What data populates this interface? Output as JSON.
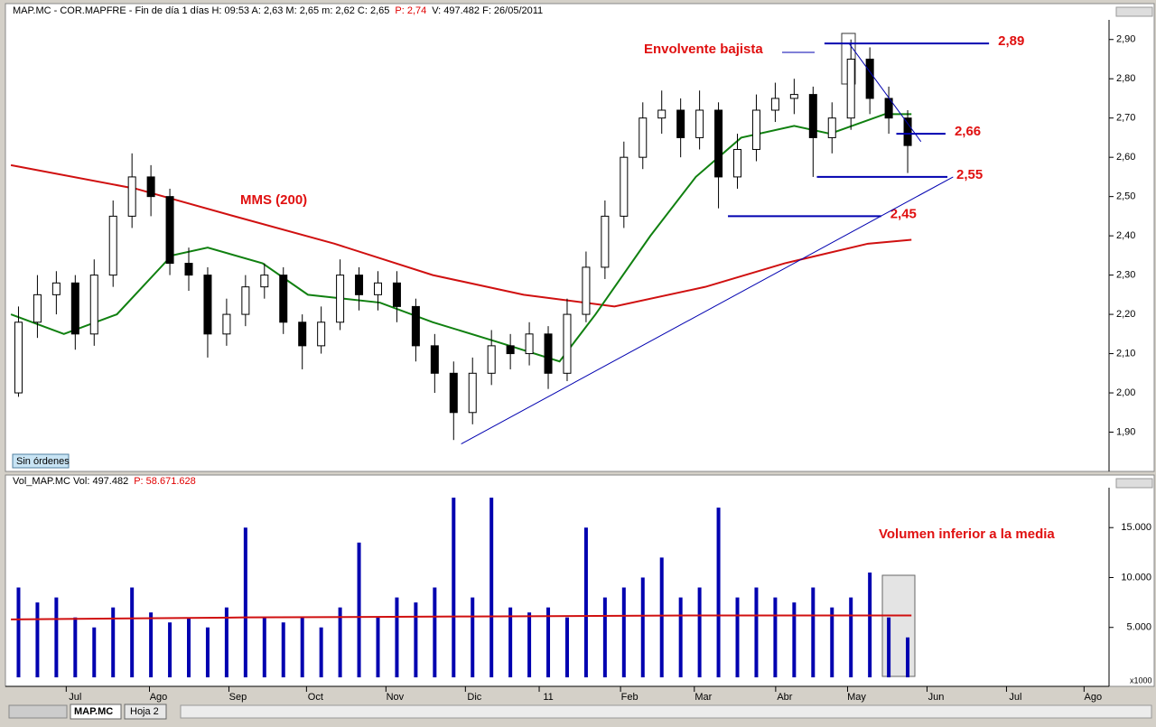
{
  "ui": {
    "tabs": [
      "MAP.MC",
      "Hoja 2"
    ],
    "button": "Sin órdenes"
  },
  "chart_data": [
    {
      "type": "candlestick",
      "header": [
        {
          "text": "MAP.MC - COR.MAPFRE - Fin de día 1 días  H: 09:53  A: 2,63  M: 2,65  m: 2,62  C: 2,65"
        },
        {
          "text": "P: 2,74",
          "color": "#e00000"
        },
        {
          "text": "V: 497.482  F: 26/05/2011"
        }
      ],
      "x": [
        0,
        1,
        2,
        3,
        4,
        5,
        6,
        7,
        8,
        9,
        10,
        11,
        12,
        13,
        14,
        15,
        16,
        17,
        18,
        19,
        20,
        21,
        22,
        23,
        24,
        25,
        26,
        27,
        28,
        29,
        30,
        31,
        32,
        33,
        34,
        35,
        36,
        37,
        38,
        39,
        40,
        41,
        42,
        43,
        44,
        45,
        46,
        47
      ],
      "open": [
        2.0,
        2.18,
        2.25,
        2.28,
        2.15,
        2.3,
        2.45,
        2.55,
        2.5,
        2.33,
        2.3,
        2.15,
        2.2,
        2.27,
        2.3,
        2.18,
        2.12,
        2.18,
        2.3,
        2.25,
        2.28,
        2.22,
        2.12,
        2.05,
        1.95,
        2.05,
        2.12,
        2.1,
        2.15,
        2.05,
        2.2,
        2.32,
        2.45,
        2.6,
        2.7,
        2.72,
        2.65,
        2.72,
        2.55,
        2.62,
        2.72,
        2.75,
        2.76,
        2.65,
        2.7,
        2.85,
        2.75,
        2.7
      ],
      "high": [
        2.22,
        2.3,
        2.31,
        2.3,
        2.34,
        2.49,
        2.61,
        2.58,
        2.52,
        2.37,
        2.32,
        2.24,
        2.3,
        2.33,
        2.32,
        2.2,
        2.22,
        2.34,
        2.32,
        2.31,
        2.31,
        2.24,
        2.15,
        2.08,
        2.09,
        2.16,
        2.15,
        2.18,
        2.17,
        2.24,
        2.36,
        2.49,
        2.64,
        2.74,
        2.77,
        2.75,
        2.77,
        2.74,
        2.66,
        2.76,
        2.79,
        2.8,
        2.78,
        2.74,
        2.9,
        2.88,
        2.78,
        2.72
      ],
      "low": [
        1.99,
        2.14,
        2.2,
        2.11,
        2.12,
        2.27,
        2.42,
        2.45,
        2.3,
        2.26,
        2.09,
        2.12,
        2.17,
        2.24,
        2.15,
        2.06,
        2.1,
        2.16,
        2.21,
        2.21,
        2.18,
        2.08,
        2.0,
        1.88,
        1.92,
        2.02,
        2.06,
        2.07,
        2.01,
        2.03,
        2.18,
        2.29,
        2.42,
        2.57,
        2.66,
        2.6,
        2.62,
        2.47,
        2.52,
        2.59,
        2.69,
        2.71,
        2.55,
        2.61,
        2.67,
        2.71,
        2.66,
        2.56
      ],
      "close": [
        2.18,
        2.25,
        2.28,
        2.15,
        2.3,
        2.45,
        2.55,
        2.5,
        2.33,
        2.3,
        2.15,
        2.2,
        2.27,
        2.3,
        2.18,
        2.12,
        2.18,
        2.3,
        2.25,
        2.28,
        2.22,
        2.12,
        2.05,
        1.95,
        2.05,
        2.12,
        2.1,
        2.15,
        2.05,
        2.2,
        2.32,
        2.45,
        2.6,
        2.7,
        2.72,
        2.65,
        2.72,
        2.55,
        2.62,
        2.72,
        2.75,
        2.76,
        2.65,
        2.7,
        2.85,
        2.75,
        2.7,
        2.63
      ],
      "series": [
        {
          "name": "MMS (200)",
          "color": "#d01010",
          "x": [
            -0.4,
            6.2,
            11.4,
            16.7,
            21.9,
            26.7,
            31.5,
            36.3,
            40.5,
            44.9,
            47.2
          ],
          "values": [
            2.58,
            2.52,
            2.45,
            2.38,
            2.3,
            2.25,
            2.22,
            2.27,
            2.33,
            2.38,
            2.39
          ]
        },
        {
          "color": "#108010",
          "x": [
            -0.4,
            2.4,
            5.2,
            8.1,
            10.0,
            12.9,
            15.3,
            19.1,
            21.9,
            25.3,
            28.6,
            30.5,
            33.4,
            35.8,
            38.2,
            41.0,
            42.9,
            45.8,
            47.2
          ],
          "values": [
            2.2,
            2.15,
            2.2,
            2.35,
            2.37,
            2.33,
            2.25,
            2.23,
            2.18,
            2.13,
            2.08,
            2.2,
            2.4,
            2.55,
            2.65,
            2.68,
            2.66,
            2.71,
            2.71
          ]
        }
      ],
      "levels": [
        {
          "label": "2,89",
          "value": 2.89,
          "x": [
            42.6,
            51.3
          ]
        },
        {
          "label": "2,66",
          "value": 2.66,
          "x": [
            46.4,
            49.0
          ]
        },
        {
          "label": "2,55",
          "value": 2.55,
          "x": [
            42.2,
            49.1
          ]
        },
        {
          "label": "2,45",
          "value": 2.45,
          "x": [
            37.5,
            45.6
          ]
        }
      ],
      "trendlines": [
        {
          "x": [
            23.4,
            49.4
          ],
          "values": [
            1.87,
            2.55
          ]
        },
        {
          "x": [
            43.9,
            47.7
          ],
          "values": [
            2.89,
            2.64
          ]
        }
      ],
      "annotations": [
        "Envolvente bajista"
      ],
      "xlim": [
        -0.5,
        57.5
      ],
      "xticks": [
        {
          "value": 3.0,
          "label": "Jul"
        },
        {
          "value": 7.4,
          "label": "Ago"
        },
        {
          "value": 11.6,
          "label": "Sep"
        },
        {
          "value": 15.7,
          "label": "Oct"
        },
        {
          "value": 19.9,
          "label": "Nov"
        },
        {
          "value": 24.1,
          "label": "Dic"
        },
        {
          "value": 28.0,
          "label": "11"
        },
        {
          "value": 32.3,
          "label": "Feb"
        },
        {
          "value": 36.2,
          "label": "Mar"
        },
        {
          "value": 40.5,
          "label": "Abr"
        },
        {
          "value": 44.3,
          "label": "May"
        },
        {
          "value": 48.5,
          "label": "Jun"
        },
        {
          "value": 52.7,
          "label": "Jul"
        },
        {
          "value": 56.8,
          "label": "Ago"
        }
      ],
      "ylim": [
        1.8,
        2.95
      ],
      "yticks": [
        {
          "value": 1.9,
          "label": "1,90"
        },
        {
          "value": 2.0,
          "label": "2,00"
        },
        {
          "value": 2.1,
          "label": "2,10"
        },
        {
          "value": 2.2,
          "label": "2,20"
        },
        {
          "value": 2.3,
          "label": "2,30"
        },
        {
          "value": 2.4,
          "label": "2,40"
        },
        {
          "value": 2.5,
          "label": "2,50"
        },
        {
          "value": 2.6,
          "label": "2,60"
        },
        {
          "value": 2.7,
          "label": "2,70"
        },
        {
          "value": 2.8,
          "label": "2,80"
        },
        {
          "value": 2.9,
          "label": "2,90"
        }
      ]
    },
    {
      "type": "bar",
      "header": [
        {
          "text": "Vol_MAP.MC  Vol: 497.482"
        },
        {
          "text": "P: 58.671.628",
          "color": "#e00000"
        }
      ],
      "color": "#0000b0",
      "values": [
        9000,
        7500,
        8000,
        6000,
        5000,
        7000,
        9000,
        6500,
        5500,
        6000,
        5000,
        7000,
        15000,
        6000,
        5500,
        6000,
        5000,
        7000,
        13500,
        6000,
        8000,
        7500,
        9000,
        18000,
        8000,
        18000,
        7000,
        6500,
        7000,
        6000,
        15000,
        8000,
        9000,
        10000,
        12000,
        8000,
        9000,
        17000,
        8000,
        9000,
        8000,
        7500,
        9000,
        7000,
        8000,
        10500,
        6000,
        4000
      ],
      "series": [
        {
          "color": "#d01010",
          "x": [
            -0.4,
            12,
            24,
            36,
            47.2
          ],
          "values": [
            5800,
            6000,
            6100,
            6200,
            6200
          ]
        }
      ],
      "annotations": [
        "Volumen inferior a la media"
      ],
      "unit_label": "x1000",
      "ylim": [
        0,
        19000
      ],
      "yticks": [
        {
          "value": 5000,
          "label": "5.000"
        },
        {
          "value": 10000,
          "label": "10.000"
        },
        {
          "value": 15000,
          "label": "15.000"
        }
      ]
    }
  ]
}
